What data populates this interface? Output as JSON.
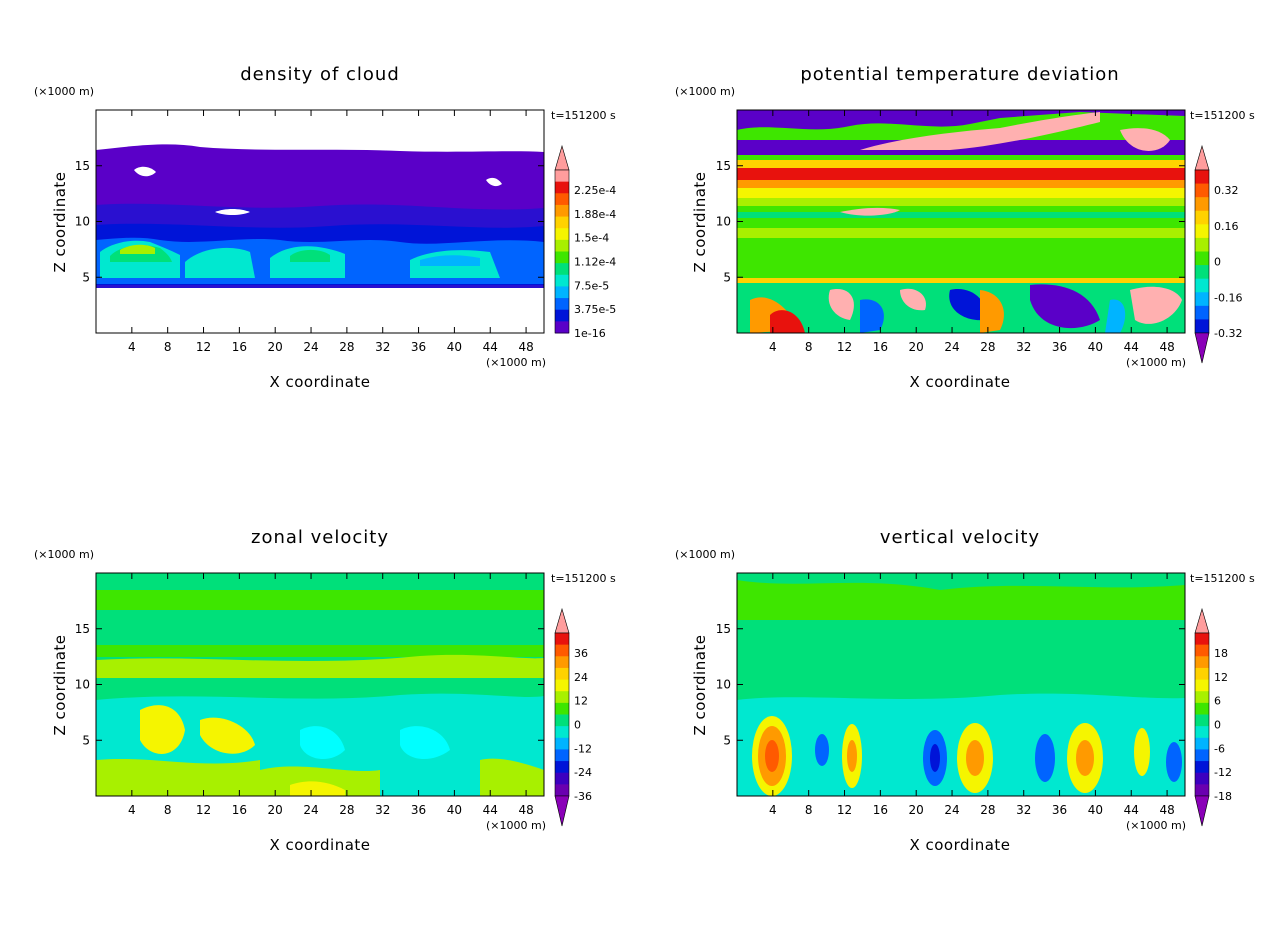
{
  "chart_data": [
    {
      "type": "heatmap",
      "title": "density of cloud",
      "xlabel": "X coordinate",
      "ylabel": "Z coordinate",
      "x_unit": "(×1000 m)",
      "y_unit": "(×1000 m)",
      "time_label": "t=151200 s",
      "xlim": [
        0,
        50
      ],
      "ylim": [
        0,
        20
      ],
      "x_ticks": [
        "4",
        "8",
        "12",
        "16",
        "20",
        "24",
        "28",
        "32",
        "36",
        "40",
        "44",
        "48"
      ],
      "y_ticks": [
        "5",
        "10",
        "15"
      ],
      "colorbar": {
        "labels": [
          "2.25e-4",
          "1.88e-4",
          "1.5e-4",
          "1.12e-4",
          "7.5e-5",
          "3.75e-5",
          "1e-16"
        ],
        "colors": [
          "#ff9d9d",
          "#e8120d",
          "#ff5a00",
          "#ff9a00",
          "#ffd200",
          "#f5f500",
          "#a8f000",
          "#3ee600",
          "#00e07a",
          "#00e8d0",
          "#00b4ff",
          "#0064ff",
          "#0014d8",
          "#5a00c8"
        ],
        "arrow_top": true,
        "arrow_bottom": false
      }
    },
    {
      "type": "heatmap",
      "title": "potential temperature deviation",
      "xlabel": "X coordinate",
      "ylabel": "Z coordinate",
      "x_unit": "(×1000 m)",
      "y_unit": "(×1000 m)",
      "time_label": "t=151200 s",
      "xlim": [
        0,
        50
      ],
      "ylim": [
        0,
        20
      ],
      "x_ticks": [
        "4",
        "8",
        "12",
        "16",
        "20",
        "24",
        "28",
        "32",
        "36",
        "40",
        "44",
        "48"
      ],
      "y_ticks": [
        "5",
        "10",
        "15"
      ],
      "colorbar": {
        "labels": [
          "0.32",
          "0.16",
          "0",
          "-0.16",
          "-0.32"
        ],
        "colors": [
          "#e8120d",
          "#ff5a00",
          "#ff9a00",
          "#ffd200",
          "#f5f500",
          "#a8f000",
          "#3ee600",
          "#00e07a",
          "#00e8d0",
          "#00b4ff",
          "#0064ff",
          "#0014d8"
        ],
        "arrow_top": true,
        "arrow_bottom": true
      }
    },
    {
      "type": "heatmap",
      "title": "zonal velocity",
      "xlabel": "X coordinate",
      "ylabel": "Z coordinate",
      "x_unit": "(×1000 m)",
      "y_unit": "(×1000 m)",
      "time_label": "t=151200 s",
      "xlim": [
        0,
        50
      ],
      "ylim": [
        0,
        20
      ],
      "x_ticks": [
        "4",
        "8",
        "12",
        "16",
        "20",
        "24",
        "28",
        "32",
        "36",
        "40",
        "44",
        "48"
      ],
      "y_ticks": [
        "5",
        "10",
        "15"
      ],
      "colorbar": {
        "labels": [
          "36",
          "24",
          "12",
          "0",
          "-12",
          "-24",
          "-36"
        ],
        "colors": [
          "#e8120d",
          "#ff5a00",
          "#ff9a00",
          "#ffd200",
          "#f5f500",
          "#a8f000",
          "#3ee600",
          "#00e07a",
          "#00e8d0",
          "#00b4ff",
          "#0064ff",
          "#0014d8",
          "#3c00c0",
          "#6a00b0"
        ],
        "arrow_top": true,
        "arrow_bottom": true
      }
    },
    {
      "type": "heatmap",
      "title": "vertical velocity",
      "xlabel": "X coordinate",
      "ylabel": "Z coordinate",
      "x_unit": "(×1000 m)",
      "y_unit": "(×1000 m)",
      "time_label": "t=151200 s",
      "xlim": [
        0,
        50
      ],
      "ylim": [
        0,
        20
      ],
      "x_ticks": [
        "4",
        "8",
        "12",
        "16",
        "20",
        "24",
        "28",
        "32",
        "36",
        "40",
        "44",
        "48"
      ],
      "y_ticks": [
        "5",
        "10",
        "15"
      ],
      "colorbar": {
        "labels": [
          "18",
          "12",
          "6",
          "0",
          "-6",
          "-12",
          "-18"
        ],
        "colors": [
          "#e8120d",
          "#ff5a00",
          "#ff9a00",
          "#ffd200",
          "#f5f500",
          "#a8f000",
          "#3ee600",
          "#00e07a",
          "#00e8d0",
          "#00b4ff",
          "#0064ff",
          "#0014d8",
          "#3c00c0",
          "#6a00b0"
        ],
        "arrow_top": true,
        "arrow_bottom": true
      }
    }
  ]
}
